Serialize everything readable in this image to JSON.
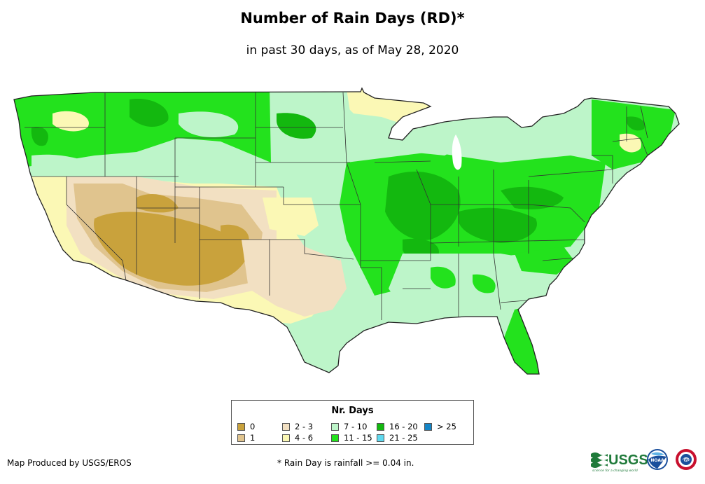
{
  "header": {
    "title": "Number of Rain Days (RD)*",
    "subtitle": "in past 30 days, as of May 28, 2020"
  },
  "legend": {
    "title": "Nr. Days",
    "items": [
      {
        "label": "0",
        "color": "#c9a23c"
      },
      {
        "label": "1",
        "color": "#e0c48e"
      },
      {
        "label": "2 - 3",
        "color": "#f2e0c2"
      },
      {
        "label": "4 - 6",
        "color": "#fbf8b5"
      },
      {
        "label": "7 - 10",
        "color": "#bdf5c9"
      },
      {
        "label": "11 - 15",
        "color": "#23e21d"
      },
      {
        "label": "16 - 20",
        "color": "#13b80f"
      },
      {
        "label": "21 - 25",
        "color": "#5fd9ef"
      },
      {
        "label": "> 25",
        "color": "#1585c6"
      }
    ]
  },
  "footer": {
    "credit": "Map Produced by USGS/EROS",
    "footnote": "* Rain Day is rainfall >= 0.04 in."
  },
  "logos": {
    "usgs_text": "USGS",
    "usgs_tagline": "science for a changing world",
    "noaa_text": "NOAA",
    "nws_text": "NWS"
  }
}
